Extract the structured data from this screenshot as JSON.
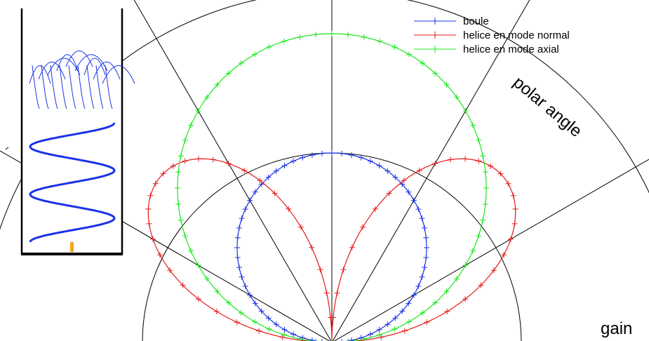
{
  "chart_data": {
    "type": "polar-line",
    "title": "",
    "angle_label": "polar angle",
    "radius_label": "gain",
    "angle_range_deg": [
      0,
      180
    ],
    "spokes_deg": [
      30,
      60,
      90,
      120,
      150
    ],
    "grid_rings": [
      0.27,
      0.5,
      0.72
    ],
    "inset_label": "",
    "series": [
      {
        "name": "boule",
        "color": "#1a33e6",
        "model": "circle",
        "gain": 0.27
      },
      {
        "name": "helice en mode normal",
        "color": "#e61a1a",
        "model": "sin",
        "gain": 0.34
      },
      {
        "name": "helice en mode axial",
        "color": "#1ee61e",
        "model": "circle",
        "gain": 0.44
      }
    ]
  }
}
